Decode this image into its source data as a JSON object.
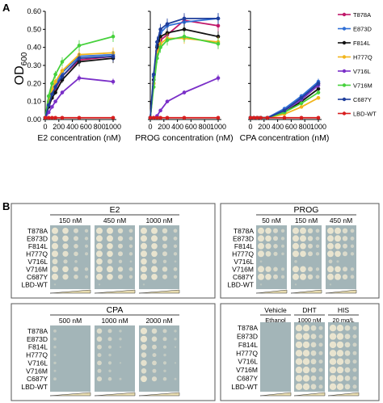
{
  "panel_a_label": "A",
  "panel_b_label": "B",
  "y_axis_label": "OD",
  "y_axis_sub": "600",
  "legend": [
    {
      "name": "T878A",
      "color": "#c0186a"
    },
    {
      "name": "E873D",
      "color": "#2f6fd6"
    },
    {
      "name": "F814L",
      "color": "#111111"
    },
    {
      "name": "H777Q",
      "color": "#f2b51c"
    },
    {
      "name": "V716L",
      "color": "#7a2fc8"
    },
    {
      "name": "V716M",
      "color": "#46d13c"
    },
    {
      "name": "C687Y",
      "color": "#1f3f9c"
    },
    {
      "name": "LBD-WT",
      "color": "#d81e1e"
    }
  ],
  "chart_data": [
    {
      "type": "line",
      "xlabel": "E2 concentration (nM)",
      "ylabel": "OD600",
      "xlim": [
        0,
        1000
      ],
      "ylim": [
        0,
        0.6
      ],
      "xticks": [
        "0",
        "200",
        "400",
        "600",
        "800",
        "1000"
      ],
      "yticks": [
        "0.00",
        "0.10",
        "0.20",
        "0.30",
        "0.40",
        "0.50",
        "0.60"
      ],
      "x": [
        0,
        50,
        100,
        150,
        250,
        500,
        1000
      ],
      "series": [
        {
          "name": "T878A",
          "values": [
            0.01,
            0.08,
            0.13,
            0.17,
            0.24,
            0.33,
            0.35
          ]
        },
        {
          "name": "E873D",
          "values": [
            0.01,
            0.09,
            0.15,
            0.19,
            0.26,
            0.35,
            0.36
          ]
        },
        {
          "name": "F814L",
          "values": [
            0.01,
            0.07,
            0.12,
            0.15,
            0.22,
            0.32,
            0.34
          ]
        },
        {
          "name": "H777Q",
          "values": [
            0.01,
            0.1,
            0.17,
            0.21,
            0.27,
            0.36,
            0.37
          ]
        },
        {
          "name": "V716L",
          "values": [
            0.01,
            0.04,
            0.07,
            0.1,
            0.15,
            0.23,
            0.21
          ]
        },
        {
          "name": "V716M",
          "values": [
            0.01,
            0.13,
            0.2,
            0.25,
            0.32,
            0.41,
            0.46
          ]
        },
        {
          "name": "C687Y",
          "values": [
            0.01,
            0.08,
            0.14,
            0.18,
            0.24,
            0.34,
            0.35
          ]
        },
        {
          "name": "LBD-WT",
          "values": [
            0.01,
            0.01,
            0.01,
            0.01,
            0.01,
            0.01,
            0.01
          ]
        }
      ]
    },
    {
      "type": "line",
      "xlabel": "PROG concentration (nM)",
      "xlim": [
        0,
        1000
      ],
      "ylim": [
        0,
        0.6
      ],
      "xticks": [
        "0",
        "200",
        "400",
        "600",
        "800",
        "1000"
      ],
      "x": [
        0,
        50,
        100,
        150,
        250,
        500,
        1000
      ],
      "series": [
        {
          "name": "T878A",
          "values": [
            0.01,
            0.2,
            0.38,
            0.44,
            0.47,
            0.55,
            0.52
          ]
        },
        {
          "name": "E873D",
          "values": [
            0.01,
            0.24,
            0.41,
            0.48,
            0.52,
            0.54,
            0.56
          ]
        },
        {
          "name": "F814L",
          "values": [
            0.01,
            0.22,
            0.4,
            0.46,
            0.48,
            0.5,
            0.46
          ]
        },
        {
          "name": "H777Q",
          "values": [
            0.01,
            0.2,
            0.36,
            0.42,
            0.45,
            0.45,
            0.43
          ]
        },
        {
          "name": "V716L",
          "values": [
            0.01,
            0.01,
            0.02,
            0.05,
            0.1,
            0.15,
            0.23
          ]
        },
        {
          "name": "V716M",
          "values": [
            0.01,
            0.18,
            0.34,
            0.4,
            0.44,
            0.46,
            0.42
          ]
        },
        {
          "name": "C687Y",
          "values": [
            0.01,
            0.25,
            0.43,
            0.5,
            0.53,
            0.56,
            0.56
          ]
        },
        {
          "name": "LBD-WT",
          "values": [
            0.01,
            0.01,
            0.01,
            0.01,
            0.01,
            0.01,
            0.01
          ]
        }
      ]
    },
    {
      "type": "line",
      "xlabel": "CPA concentration (nM)",
      "xlim": [
        0,
        1000
      ],
      "ylim": [
        0,
        0.6
      ],
      "xticks": [
        "0",
        "200",
        "400",
        "600",
        "800",
        "1000"
      ],
      "x": [
        0,
        50,
        100,
        150,
        250,
        500,
        750,
        1000
      ],
      "series": [
        {
          "name": "T878A",
          "values": [
            0.01,
            0.01,
            0.01,
            0.01,
            0.01,
            0.05,
            0.12,
            0.2
          ]
        },
        {
          "name": "E873D",
          "values": [
            0.01,
            0.01,
            0.01,
            0.01,
            0.01,
            0.06,
            0.13,
            0.21
          ]
        },
        {
          "name": "F814L",
          "values": [
            0.01,
            0.01,
            0.01,
            0.01,
            0.01,
            0.04,
            0.1,
            0.17
          ]
        },
        {
          "name": "H777Q",
          "values": [
            0.01,
            0.01,
            0.01,
            0.01,
            0.01,
            0.03,
            0.07,
            0.12
          ]
        },
        {
          "name": "V716L",
          "values": [
            0.01,
            0.01,
            0.01,
            0.01,
            0.01,
            0.05,
            0.11,
            0.19
          ]
        },
        {
          "name": "V716M",
          "values": [
            0.01,
            0.01,
            0.01,
            0.01,
            0.01,
            0.04,
            0.09,
            0.15
          ]
        },
        {
          "name": "C687Y",
          "values": [
            0.01,
            0.01,
            0.01,
            0.01,
            0.01,
            0.05,
            0.12,
            0.2
          ]
        },
        {
          "name": "LBD-WT",
          "values": [
            0.01,
            0.01,
            0.01,
            0.01,
            0.01,
            0.01,
            0.01,
            0.01
          ]
        }
      ]
    }
  ],
  "spot_assays": [
    {
      "title": "E2",
      "rows": [
        "T878A",
        "E873D",
        "F814L",
        "H777Q",
        "V716L",
        "V716M",
        "C687Y",
        "LBD-WT"
      ],
      "columns": [
        {
          "label": "150 nM",
          "growth": [
            0.9,
            0.9,
            0.85,
            0.85,
            0.6,
            0.9,
            0.85,
            0.05
          ]
        },
        {
          "label": "450 nM",
          "growth": [
            0.95,
            0.95,
            0.9,
            0.9,
            0.7,
            0.95,
            0.9,
            0.05
          ]
        },
        {
          "label": "1000 nM",
          "growth": [
            0.95,
            0.95,
            0.9,
            0.9,
            0.7,
            0.95,
            0.9,
            0.05
          ]
        }
      ]
    },
    {
      "title": "PROG",
      "rows": [
        "T878A",
        "E873D",
        "F814L",
        "H777Q",
        "V716L",
        "V716M",
        "C687Y",
        "LBD-WT"
      ],
      "columns": [
        {
          "label": "50 nM",
          "growth": [
            0.9,
            0.9,
            0.85,
            0.8,
            0.1,
            0.85,
            0.9,
            0.05
          ]
        },
        {
          "label": "150 nM",
          "growth": [
            0.95,
            0.95,
            0.9,
            0.9,
            0.2,
            0.9,
            0.95,
            0.05
          ]
        },
        {
          "label": "450 nM",
          "growth": [
            0.95,
            0.95,
            0.9,
            0.9,
            0.35,
            0.9,
            0.95,
            0.05
          ]
        }
      ]
    },
    {
      "title": "CPA",
      "rows": [
        "T878A",
        "E873D",
        "F814L",
        "H777Q",
        "V716L",
        "V716M",
        "C687Y",
        "LBD-WT"
      ],
      "columns": [
        {
          "label": "500 nM",
          "growth": [
            0.2,
            0.2,
            0.15,
            0.1,
            0.15,
            0.1,
            0.2,
            0.02
          ]
        },
        {
          "label": "1000 nM",
          "growth": [
            0.55,
            0.55,
            0.45,
            0.35,
            0.45,
            0.35,
            0.5,
            0.02
          ]
        },
        {
          "label": "2000 nM",
          "growth": [
            0.75,
            0.75,
            0.65,
            0.55,
            0.65,
            0.55,
            0.7,
            0.02
          ]
        }
      ]
    },
    {
      "title": "",
      "rows": [
        "T878A",
        "E873D",
        "F814L",
        "H777Q",
        "V716L",
        "V716M",
        "C687Y",
        "LBD-WT"
      ],
      "columns": [
        {
          "label": "Vehicle",
          "sublabel": "Ethanol",
          "growth": [
            0,
            0,
            0,
            0,
            0,
            0,
            0,
            0
          ]
        },
        {
          "label": "DHT",
          "sublabel": "1000 nM",
          "growth": [
            0.95,
            0.95,
            0.95,
            0.95,
            0.95,
            0.95,
            0.95,
            0.95
          ]
        },
        {
          "label": "HIS",
          "sublabel": "20 mg/L",
          "growth": [
            0.95,
            0.95,
            0.95,
            0.95,
            0.95,
            0.95,
            0.95,
            0.95
          ]
        }
      ]
    }
  ]
}
